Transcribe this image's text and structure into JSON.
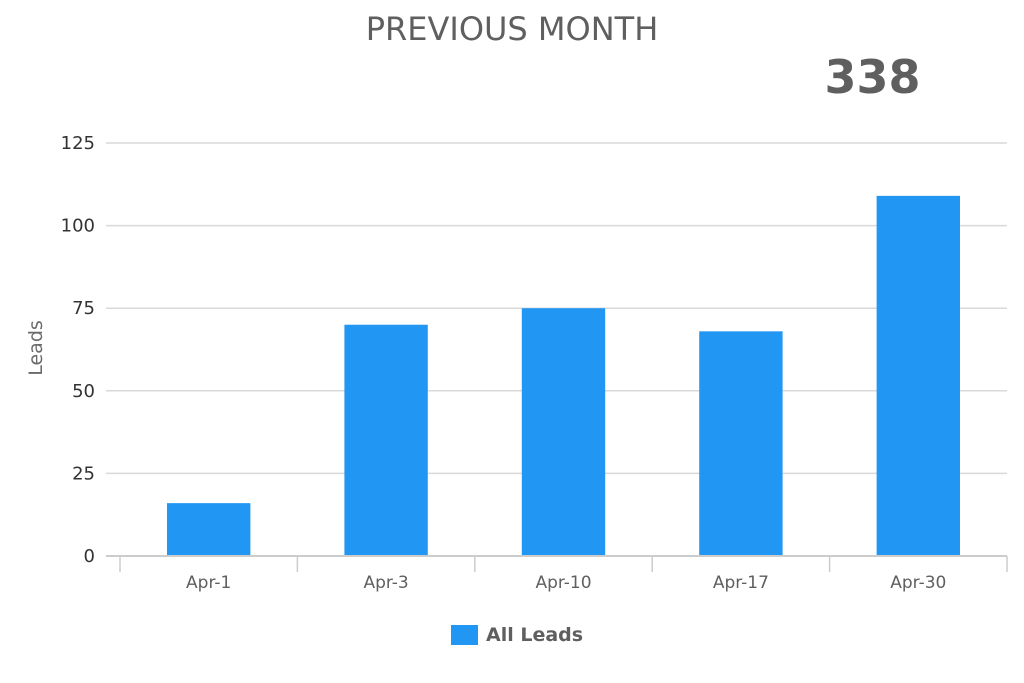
{
  "header": {
    "title": "PREVIOUS MONTH",
    "total": "338"
  },
  "colors": {
    "bar": "#2196f3",
    "grid": "#d9d9d9",
    "axis": "#cccccc",
    "text": "#5f5f5f"
  },
  "chart_data": {
    "type": "bar",
    "title": "PREVIOUS MONTH",
    "categories": [
      "Apr-1",
      "Apr-3",
      "Apr-10",
      "Apr-17",
      "Apr-30"
    ],
    "series": [
      {
        "name": "All Leads",
        "values": [
          16,
          70,
          75,
          68,
          109
        ]
      }
    ],
    "xlabel": "",
    "ylabel": "Leads",
    "ylim": [
      0,
      125
    ],
    "yticks": [
      0,
      25,
      50,
      75,
      100,
      125
    ],
    "grid": true,
    "legend_position": "bottom"
  }
}
